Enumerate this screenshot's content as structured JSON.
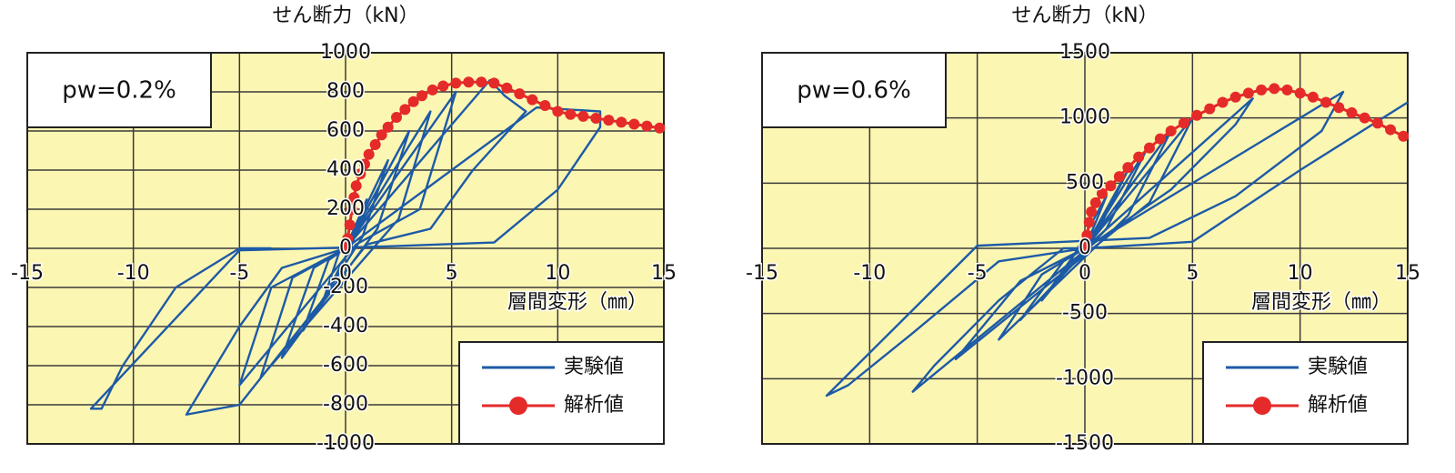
{
  "chart_data": [
    {
      "type": "line",
      "ylabel": "せん断力（kN）",
      "xlabel": "層間変形（㎜）",
      "annotation": "pw=0.2%",
      "xlim": [
        -15,
        15
      ],
      "ylim": [
        -1000,
        1000
      ],
      "xticks": [
        -15,
        -10,
        -5,
        0,
        5,
        10,
        15
      ],
      "yticks": [
        -1000,
        -800,
        -600,
        -400,
        -200,
        0,
        200,
        400,
        600,
        800,
        1000
      ],
      "grid": true,
      "legend": "lower right",
      "series": [
        {
          "name": "実験値",
          "color": "#1d5aa6",
          "x": [
            0,
            1,
            0.3,
            -1,
            -0.3,
            0,
            2,
            0.8,
            -2,
            -0.8,
            0,
            3,
            1.5,
            -3,
            -1.5,
            0,
            4,
            2.5,
            -4,
            -2.5,
            0,
            5.2,
            3.5,
            0.5,
            -5,
            -3.5,
            0,
            6.8,
            7.5,
            8.5,
            6,
            4,
            1,
            -5,
            -7.5,
            -5,
            -3,
            0,
            9,
            12,
            12,
            10,
            7,
            2,
            -5,
            -12,
            -11.5,
            -10.5,
            -8,
            -5,
            -3.5
          ],
          "values": [
            0,
            250,
            20,
            -250,
            -20,
            0,
            450,
            60,
            -420,
            -60,
            0,
            600,
            100,
            -560,
            -100,
            0,
            700,
            150,
            -660,
            -150,
            0,
            800,
            200,
            20,
            -700,
            -200,
            0,
            860,
            780,
            700,
            400,
            100,
            20,
            -800,
            -850,
            -400,
            -100,
            0,
            720,
            700,
            620,
            300,
            30,
            10,
            -10,
            -820,
            -820,
            -600,
            -200,
            0,
            0
          ]
        },
        {
          "name": "解析値",
          "color": "#e52a2a",
          "marker": "circle",
          "x": [
            0,
            0.1,
            0.2,
            0.3,
            0.4,
            0.5,
            0.7,
            0.9,
            1.1,
            1.4,
            1.7,
            2.0,
            2.4,
            2.8,
            3.2,
            3.6,
            4.1,
            4.6,
            5.2,
            5.8,
            6.4,
            7.0,
            7.6,
            8.2,
            8.8,
            9.4,
            10.0,
            10.6,
            11.2,
            11.8,
            12.4,
            13.0,
            13.6,
            14.2,
            14.8
          ],
          "values": [
            0,
            50,
            120,
            200,
            260,
            320,
            380,
            430,
            480,
            530,
            580,
            620,
            670,
            710,
            750,
            780,
            810,
            830,
            845,
            850,
            850,
            845,
            820,
            790,
            760,
            730,
            700,
            685,
            675,
            665,
            655,
            645,
            635,
            625,
            615
          ]
        }
      ]
    },
    {
      "type": "line",
      "ylabel": "せん断力（kN）",
      "xlabel": "層間変形（㎜）",
      "annotation": "pw=0.6%",
      "xlim": [
        -15,
        15
      ],
      "ylim": [
        -1500,
        1500
      ],
      "xticks": [
        -15,
        -10,
        -5,
        0,
        5,
        10,
        15
      ],
      "yticks": [
        -1500,
        -1000,
        -500,
        0,
        500,
        1000,
        1500
      ],
      "grid": true,
      "legend": "lower right",
      "series": [
        {
          "name": "実験値",
          "color": "#1d5aa6",
          "x": [
            0,
            1,
            -1,
            0,
            2,
            0.5,
            -2,
            -0.5,
            0,
            3,
            1,
            -3,
            -1,
            0,
            4,
            2,
            -4,
            -2,
            0,
            5,
            3,
            -6,
            -3,
            0,
            7.8,
            7,
            4,
            0.5,
            -8,
            -7,
            -4,
            -1,
            0,
            12,
            11,
            7,
            3,
            -5,
            -12,
            -11,
            -8,
            -4,
            0,
            5,
            10,
            15
          ],
          "values": [
            0,
            400,
            -200,
            0,
            600,
            100,
            -400,
            -50,
            0,
            800,
            150,
            -550,
            -100,
            0,
            900,
            250,
            -700,
            -200,
            0,
            1000,
            350,
            -850,
            -250,
            0,
            1150,
            950,
            450,
            50,
            -1100,
            -900,
            -400,
            0,
            0,
            1200,
            900,
            400,
            80,
            20,
            -1130,
            -1050,
            -650,
            -100,
            0,
            50,
            600,
            1120
          ]
        },
        {
          "name": "解析値",
          "color": "#e52a2a",
          "marker": "circle",
          "x": [
            0,
            0.1,
            0.2,
            0.3,
            0.5,
            0.8,
            1.2,
            1.6,
            2.0,
            2.5,
            3.0,
            3.5,
            4.0,
            4.6,
            5.2,
            5.8,
            6.4,
            7.0,
            7.6,
            8.2,
            8.8,
            9.4,
            10.0,
            10.6,
            11.2,
            11.8,
            12.4,
            13.0,
            13.6,
            14.2,
            14.8
          ],
          "values": [
            0,
            100,
            200,
            280,
            350,
            420,
            480,
            550,
            620,
            700,
            770,
            840,
            900,
            960,
            1020,
            1070,
            1120,
            1160,
            1190,
            1215,
            1225,
            1215,
            1190,
            1160,
            1120,
            1080,
            1040,
            1000,
            960,
            910,
            860
          ]
        }
      ]
    }
  ]
}
